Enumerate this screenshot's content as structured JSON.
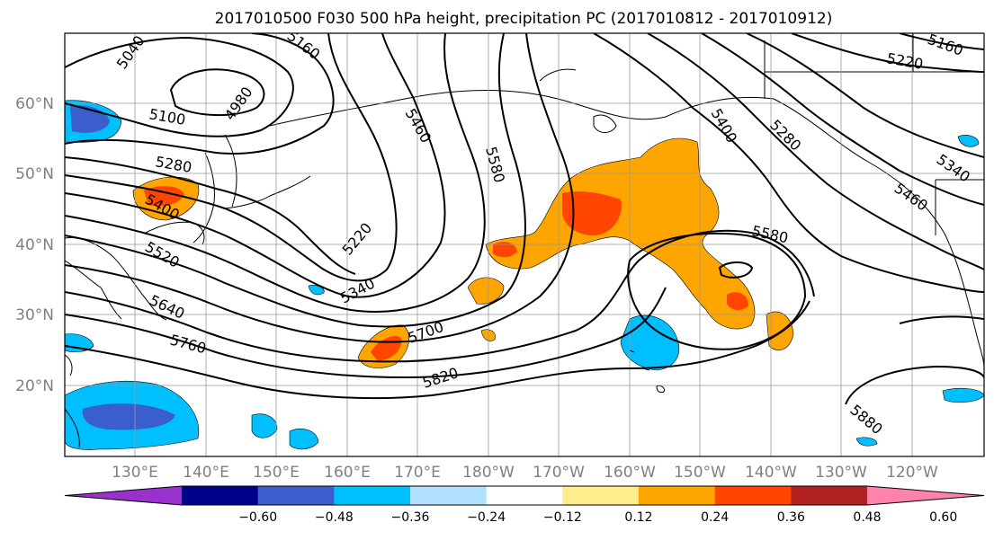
{
  "title": "2017010500 F030 500 hPa height, precipitation PC (2017010812 - 2017010912)",
  "lat_labels": [
    "60°N",
    "50°N",
    "40°N",
    "30°N",
    "20°N"
  ],
  "lon_labels": [
    "130°E",
    "140°E",
    "150°E",
    "160°E",
    "170°E",
    "180°W",
    "170°W",
    "160°W",
    "150°W",
    "140°W",
    "130°W",
    "120°W"
  ],
  "colorbar": {
    "ticks": [
      "−0.60",
      "−0.48",
      "−0.36",
      "−0.24",
      "−0.12",
      "0.12",
      "0.24",
      "0.36",
      "0.48",
      "0.60"
    ],
    "colors": [
      "#9932cc",
      "#00008b",
      "#3a5fcd",
      "#00bfff",
      "#b0e2ff",
      "#ffffff",
      "#ffec8b",
      "#ffa500",
      "#ff4500",
      "#b22222",
      "#ff82ab"
    ]
  },
  "contour_labels": [
    "5040",
    "5160",
    "4980",
    "5100",
    "5280",
    "5400",
    "5520",
    "5640",
    "5760",
    "5220",
    "5340",
    "5460",
    "5580",
    "5700",
    "5820",
    "5400",
    "5280",
    "5340",
    "5460",
    "5580",
    "5880",
    "5220",
    "5160"
  ],
  "icons": [
    "coastline-map",
    "contour-lines",
    "precip-shading"
  ]
}
